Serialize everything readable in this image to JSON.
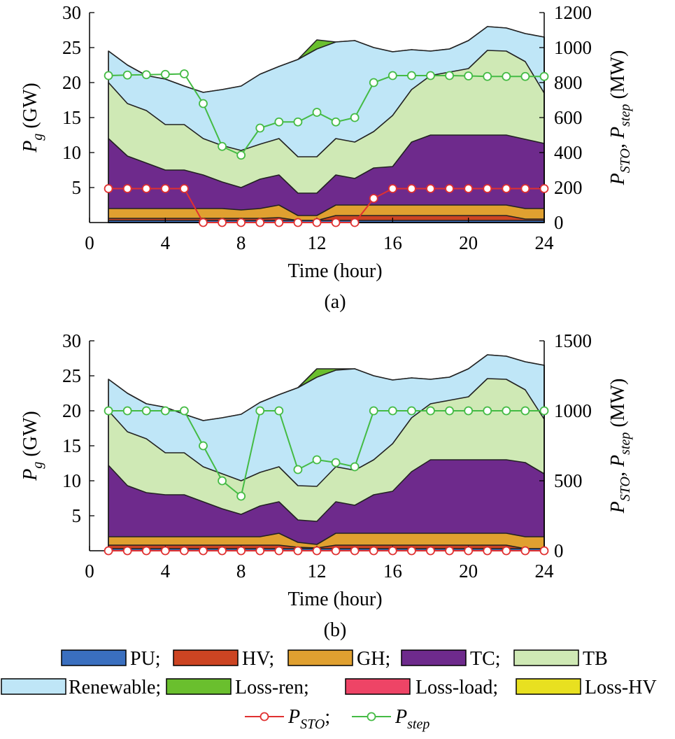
{
  "legend": {
    "areas": [
      {
        "label": "PU;",
        "color": "#3a6fbf"
      },
      {
        "label": "HV;",
        "color": "#cc4422"
      },
      {
        "label": "GH;",
        "color": "#e0a030"
      },
      {
        "label": "TC;",
        "color": "#6e2a8c"
      },
      {
        "label": "TB",
        "color": "#cfe9b5"
      },
      {
        "label": "Renewable;",
        "color": "#bfe6f7"
      },
      {
        "label": "Loss-ren;",
        "color": "#6abf2e"
      },
      {
        "label": "Loss-load;",
        "color": "#ee4466"
      },
      {
        "label": "Loss-HV",
        "color": "#e8e020"
      }
    ],
    "lines": [
      {
        "symbol": "P",
        "sub": "STO",
        "suffix": ";",
        "color": "#e03030"
      },
      {
        "symbol": "P",
        "sub": "step",
        "suffix": "",
        "color": "#44bb44"
      }
    ]
  },
  "chart_data": [
    {
      "id": "a",
      "type": "area",
      "subtitle": "(a)",
      "xlabel": "Time (hour)",
      "ylabel_left": {
        "symbol": "P",
        "sub": "g",
        "unit": " (GW)"
      },
      "ylabel_right": {
        "text": "P",
        "sub1": "STO",
        "mid": ", P",
        "sub2": "step",
        "unit": " (MW)"
      },
      "xlim": [
        0,
        24
      ],
      "xticks": [
        0,
        4,
        8,
        12,
        16,
        20,
        24
      ],
      "ylim_left": [
        0,
        30
      ],
      "yticks_left": [
        5,
        10,
        15,
        20,
        25,
        30
      ],
      "ylim_right": [
        0,
        1200
      ],
      "yticks_right": [
        0,
        200,
        400,
        600,
        800,
        1000,
        1200
      ],
      "x": [
        1,
        2,
        3,
        4,
        5,
        6,
        7,
        8,
        9,
        10,
        11,
        12,
        13,
        14,
        15,
        16,
        17,
        18,
        19,
        20,
        21,
        22,
        23,
        24
      ],
      "stack_totals": {
        "PU": [
          0.3,
          0.3,
          0.3,
          0.3,
          0.3,
          0.3,
          0.3,
          0.3,
          0.3,
          0.3,
          0.3,
          0.3,
          0.3,
          0.3,
          0.3,
          0.3,
          0.3,
          0.3,
          0.3,
          0.3,
          0.3,
          0.3,
          0.3,
          0.3
        ],
        "HV": [
          0.6,
          0.6,
          0.6,
          0.6,
          0.6,
          0.6,
          0.6,
          0.6,
          0.6,
          0.7,
          0.3,
          0.3,
          1.0,
          1.0,
          1.0,
          1.0,
          1.0,
          1.0,
          1.0,
          1.0,
          1.0,
          1.0,
          0.5,
          0.5
        ],
        "GH": [
          2.0,
          2.0,
          2.0,
          2.0,
          2.0,
          2.0,
          2.0,
          1.8,
          2.0,
          2.5,
          1.0,
          1.0,
          2.5,
          2.5,
          2.5,
          2.5,
          2.5,
          2.5,
          2.5,
          2.5,
          2.5,
          2.5,
          2.0,
          2.0
        ],
        "TC": [
          12.0,
          9.5,
          8.5,
          7.5,
          7.5,
          6.8,
          5.8,
          5.0,
          6.2,
          6.8,
          4.2,
          4.2,
          6.8,
          6.3,
          7.8,
          8.0,
          11.5,
          12.5,
          12.5,
          12.5,
          12.5,
          12.5,
          11.9,
          11.3
        ],
        "TB": [
          20.0,
          17.0,
          16.0,
          14.0,
          14.0,
          12.0,
          11.0,
          10.3,
          11.2,
          12.0,
          9.4,
          9.4,
          12.0,
          11.5,
          13.0,
          15.3,
          19.0,
          21.0,
          21.5,
          22.0,
          24.6,
          24.5,
          23.0,
          18.5
        ],
        "Renewable": [
          24.5,
          22.5,
          21.0,
          20.5,
          19.5,
          18.6,
          19.0,
          19.5,
          21.2,
          22.3,
          23.3,
          24.8,
          25.8,
          26.0,
          25.0,
          24.4,
          24.7,
          24.5,
          24.8,
          26.0,
          28.0,
          27.8,
          27.0,
          26.5
        ],
        "Loss-ren": [
          24.5,
          22.5,
          21.0,
          20.5,
          19.5,
          18.6,
          19.0,
          19.5,
          21.2,
          22.3,
          23.3,
          26.1,
          25.8,
          26.0,
          25.0,
          24.4,
          24.7,
          24.5,
          24.8,
          26.0,
          28.0,
          27.8,
          27.0,
          26.5
        ]
      },
      "series": [
        {
          "name": "P_STO",
          "axis": "right",
          "color": "#e03030",
          "values": [
            194,
            194,
            194,
            194,
            194,
            0,
            0,
            0,
            0,
            0,
            0,
            0,
            0,
            0,
            138,
            194,
            194,
            194,
            194,
            194,
            194,
            194,
            194,
            194
          ]
        },
        {
          "name": "P_step",
          "axis": "right",
          "color": "#44bb44",
          "values": [
            840,
            843,
            845,
            847,
            850,
            680,
            435,
            385,
            540,
            575,
            575,
            630,
            575,
            600,
            800,
            840,
            840,
            840,
            840,
            838,
            835,
            835,
            835,
            835
          ]
        }
      ]
    },
    {
      "id": "b",
      "type": "area",
      "subtitle": "(b)",
      "xlabel": "Time (hour)",
      "ylabel_left": {
        "symbol": "P",
        "sub": "g",
        "unit": " (GW)"
      },
      "ylabel_right": {
        "text": "P",
        "sub1": "STO",
        "mid": ", P",
        "sub2": "step",
        "unit": " (MW)"
      },
      "xlim": [
        0,
        24
      ],
      "xticks": [
        0,
        4,
        8,
        12,
        16,
        20,
        24
      ],
      "ylim_left": [
        0,
        30
      ],
      "yticks_left": [
        5,
        10,
        15,
        20,
        25,
        30
      ],
      "ylim_right": [
        0,
        1500
      ],
      "yticks_right": [
        0,
        500,
        1000,
        1500
      ],
      "x": [
        1,
        2,
        3,
        4,
        5,
        6,
        7,
        8,
        9,
        10,
        11,
        12,
        13,
        14,
        15,
        16,
        17,
        18,
        19,
        20,
        21,
        22,
        23,
        24
      ],
      "stack_totals": {
        "PU": [
          0.3,
          0.3,
          0.3,
          0.3,
          0.3,
          0.3,
          0.3,
          0.3,
          0.3,
          0.3,
          0.3,
          0.3,
          0.3,
          0.3,
          0.3,
          0.3,
          0.3,
          0.3,
          0.3,
          0.3,
          0.3,
          0.3,
          0.3,
          0.3
        ],
        "HV": [
          0.8,
          0.8,
          0.8,
          0.8,
          0.8,
          0.8,
          0.8,
          0.8,
          0.8,
          0.8,
          0.5,
          0.4,
          0.8,
          0.8,
          0.8,
          0.8,
          0.8,
          0.8,
          0.8,
          0.8,
          0.8,
          0.8,
          0.3,
          0.3
        ],
        "GH": [
          2.0,
          2.0,
          2.0,
          2.0,
          2.0,
          2.0,
          2.0,
          2.0,
          2.0,
          2.5,
          1.2,
          0.9,
          2.5,
          2.5,
          2.5,
          2.5,
          2.5,
          2.5,
          2.5,
          2.5,
          2.5,
          2.5,
          2.0,
          2.0
        ],
        "TC": [
          12.2,
          9.3,
          8.3,
          8.0,
          8.0,
          7.0,
          6.0,
          5.2,
          6.4,
          7.0,
          4.4,
          4.2,
          7.0,
          6.5,
          8.0,
          8.5,
          11.3,
          13.0,
          13.0,
          13.0,
          13.0,
          13.0,
          12.6,
          11.0
        ],
        "TB": [
          20.0,
          17.0,
          16.0,
          14.0,
          14.0,
          12.0,
          11.0,
          10.0,
          11.2,
          12.0,
          9.3,
          9.2,
          12.0,
          11.5,
          13.0,
          15.3,
          19.0,
          21.0,
          21.5,
          22.0,
          24.6,
          24.5,
          23.0,
          18.8
        ],
        "Renewable": [
          24.5,
          22.5,
          21.0,
          20.5,
          19.5,
          18.6,
          19.0,
          19.5,
          21.2,
          22.3,
          23.3,
          24.8,
          25.8,
          26.0,
          25.0,
          24.4,
          24.7,
          24.5,
          24.8,
          26.0,
          28.0,
          27.8,
          27.0,
          26.5
        ],
        "Loss-ren": [
          24.5,
          22.5,
          21.0,
          20.5,
          19.5,
          18.6,
          19.0,
          19.5,
          21.2,
          22.3,
          23.3,
          26.0,
          26.0,
          26.0,
          25.0,
          24.4,
          24.7,
          24.5,
          24.8,
          26.0,
          28.0,
          27.8,
          27.0,
          26.5
        ]
      },
      "series": [
        {
          "name": "P_STO",
          "axis": "right",
          "color": "#e03030",
          "values": [
            0,
            0,
            0,
            0,
            0,
            0,
            0,
            0,
            0,
            0,
            0,
            0,
            0,
            0,
            0,
            0,
            0,
            0,
            0,
            0,
            0,
            0,
            0,
            0
          ]
        },
        {
          "name": "P_step",
          "axis": "right",
          "color": "#44bb44",
          "values": [
            1000,
            1000,
            1000,
            1000,
            1000,
            750,
            500,
            390,
            1000,
            1000,
            580,
            650,
            630,
            600,
            1000,
            1000,
            1000,
            1000,
            1000,
            1000,
            1000,
            1000,
            1000,
            1000
          ]
        }
      ]
    }
  ]
}
